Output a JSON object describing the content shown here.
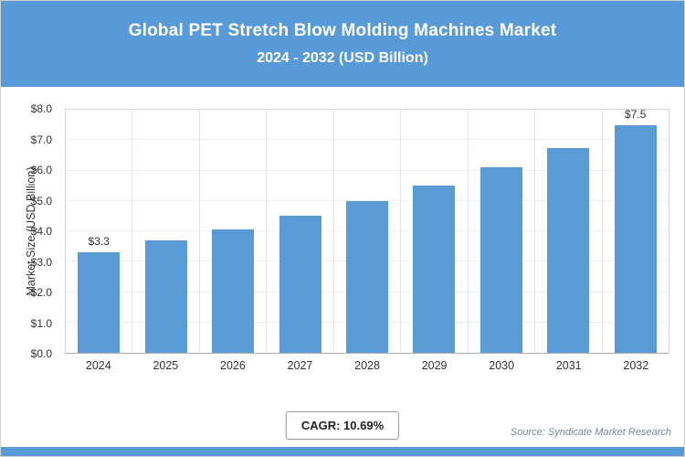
{
  "header": {
    "title": "Global PET Stretch Blow Molding Machines Market",
    "subtitle": "2024 - 2032 (USD Billion)"
  },
  "chart_data": {
    "type": "bar",
    "title": "Global PET Stretch Blow Molding Machines Market 2024 - 2032 (USD Billion)",
    "categories": [
      "2024",
      "2025",
      "2026",
      "2027",
      "2028",
      "2029",
      "2030",
      "2031",
      "2032"
    ],
    "values": [
      3.3,
      3.7,
      4.05,
      4.5,
      5.0,
      5.5,
      6.1,
      6.75,
      7.5
    ],
    "point_labels": [
      "$3.3",
      "",
      "",
      "",
      "",
      "",
      "",
      "",
      "$7.5"
    ],
    "xlabel": "",
    "ylabel": "Market Size (USD Billion)",
    "ylim": [
      0,
      8
    ],
    "y_ticks": [
      "$0.0",
      "$1.0",
      "$2.0",
      "$3.0",
      "$4.0",
      "$5.0",
      "$6.0",
      "$7.0",
      "$8.0"
    ],
    "grid": true,
    "legend": "none"
  },
  "footer": {
    "cagr_label": "CAGR: 10.69%",
    "source": "Source: Syndicate Market Research"
  },
  "colors": {
    "band": "#589ad7",
    "bar": "#5b9bd5",
    "gridline": "#ececec"
  }
}
